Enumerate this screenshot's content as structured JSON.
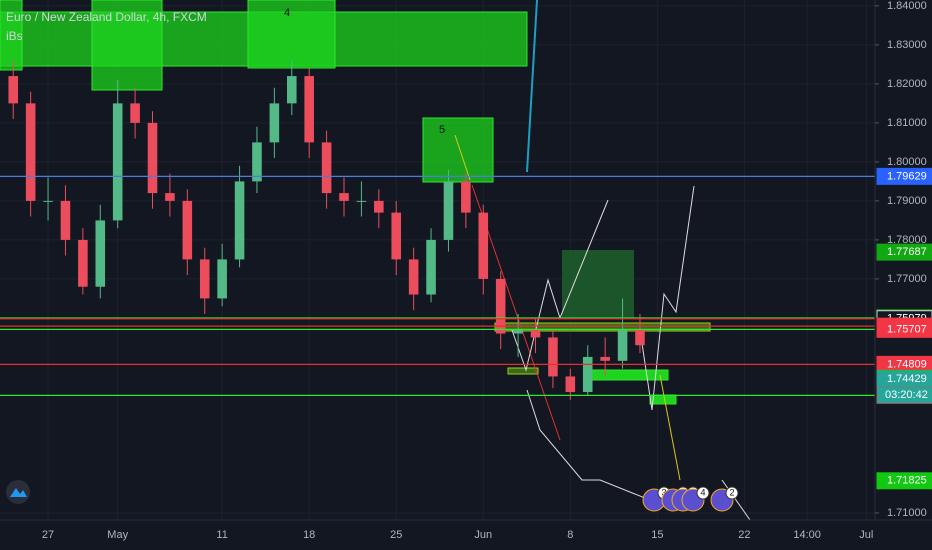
{
  "chart_data": {
    "type": "candlestick",
    "title": "Euro / New Zealand Dollar, 4h, FXCM",
    "subtitle": "iBs",
    "x": [
      -2,
      -1,
      0,
      1,
      2,
      3,
      4,
      5,
      6,
      7,
      8,
      9,
      10,
      11,
      12,
      13,
      14,
      15,
      16,
      17,
      18,
      19,
      20,
      21,
      22,
      23,
      24,
      25,
      26,
      27,
      28,
      29,
      30,
      31,
      32,
      33,
      34
    ],
    "open": [
      1.822,
      1.815,
      1.79,
      1.79,
      1.78,
      1.768,
      1.785,
      1.815,
      1.81,
      1.792,
      1.79,
      1.775,
      1.765,
      1.775,
      1.795,
      1.805,
      1.815,
      1.822,
      1.805,
      1.792,
      1.79,
      1.79,
      1.787,
      1.775,
      1.766,
      1.78,
      1.795,
      1.787,
      1.77,
      1.756,
      1.757,
      1.755,
      1.745,
      1.741,
      1.75,
      1.749,
      1.757
    ],
    "high": [
      1.826,
      1.818,
      1.796,
      1.794,
      1.783,
      1.789,
      1.821,
      1.819,
      1.813,
      1.797,
      1.793,
      1.778,
      1.779,
      1.799,
      1.809,
      1.819,
      1.826,
      1.824,
      1.808,
      1.796,
      1.795,
      1.793,
      1.79,
      1.778,
      1.783,
      1.798,
      1.797,
      1.789,
      1.772,
      1.761,
      1.76,
      1.757,
      1.747,
      1.753,
      1.755,
      1.765,
      1.761
    ],
    "low": [
      1.811,
      1.786,
      1.785,
      1.776,
      1.766,
      1.765,
      1.783,
      1.806,
      1.788,
      1.786,
      1.771,
      1.761,
      1.763,
      1.773,
      1.792,
      1.801,
      1.812,
      1.801,
      1.788,
      1.786,
      1.786,
      1.783,
      1.771,
      1.762,
      1.764,
      1.777,
      1.783,
      1.766,
      1.752,
      1.75,
      1.751,
      1.742,
      1.739,
      1.74,
      1.745,
      1.747,
      1.751
    ],
    "close": [
      1.815,
      1.79,
      1.79,
      1.78,
      1.768,
      1.785,
      1.815,
      1.81,
      1.792,
      1.79,
      1.775,
      1.765,
      1.775,
      1.795,
      1.805,
      1.815,
      1.822,
      1.805,
      1.792,
      1.79,
      1.79,
      1.787,
      1.775,
      1.766,
      1.78,
      1.795,
      1.787,
      1.77,
      1.756,
      1.757,
      1.755,
      1.745,
      1.741,
      1.75,
      1.749,
      1.757,
      1.753
    ],
    "up_color": "#53b987",
    "down_color": "#eb4d5c",
    "xlim": [
      -2.76,
      47.5
    ],
    "xticks": [
      {
        "value": 0,
        "label": "27"
      },
      {
        "value": 4,
        "label": "May"
      },
      {
        "value": 10,
        "label": "11"
      },
      {
        "value": 15,
        "label": "18"
      },
      {
        "value": 20,
        "label": "25"
      },
      {
        "value": 25,
        "label": "Jun"
      },
      {
        "value": 30,
        "label": "8"
      },
      {
        "value": 35,
        "label": "15"
      },
      {
        "value": 40,
        "label": "22"
      },
      {
        "value": 43.6,
        "label": "14:00"
      },
      {
        "value": 47,
        "label": "Jul"
      }
    ],
    "ylim": [
      1.7082,
      1.8415
    ],
    "yticks": [
      {
        "value": 1.71,
        "label": "1.71000"
      },
      {
        "value": 1.77,
        "label": "1.77000"
      },
      {
        "value": 1.78,
        "label": "1.78000"
      },
      {
        "value": 1.79,
        "label": "1.79000"
      },
      {
        "value": 1.8,
        "label": "1.80000"
      },
      {
        "value": 1.81,
        "label": "1.81000"
      },
      {
        "value": 1.82,
        "label": "1.82000"
      },
      {
        "value": 1.83,
        "label": "1.83000"
      },
      {
        "value": 1.84,
        "label": "1.84000"
      }
    ],
    "grid": true,
    "levels": [
      {
        "value": 1.79629,
        "color": "#4a7ed8"
      },
      {
        "value": 1.76,
        "color": "#2ee82e"
      },
      {
        "value": 1.75979,
        "color": "#e03030"
      },
      {
        "value": 1.75789,
        "color": "#e03030"
      },
      {
        "value": 1.75707,
        "color": "#2ee82e"
      },
      {
        "value": 1.74809,
        "color": "#e03030"
      },
      {
        "value": 1.74015,
        "color": "#2ee82e"
      }
    ],
    "price_labels": [
      {
        "value": 1.79629,
        "color": "#2962ff"
      },
      {
        "value": 1.77687,
        "color": "#12a812"
      },
      {
        "value": 1.76,
        "label": "1.76000",
        "color": "#0ec30e"
      },
      {
        "value": 1.75979,
        "color": "#131722"
      },
      {
        "value": 1.75789,
        "color": "#f23645"
      },
      {
        "value": 1.75707,
        "color": "#f23645"
      },
      {
        "value": 1.74809,
        "color": "#f23645"
      },
      {
        "value": 1.74452,
        "color": "#12c812"
      },
      {
        "value": 1.74429,
        "color": "#26a69a"
      },
      {
        "value": 1.74015,
        "color": "#f23645"
      },
      {
        "value": 1.71825,
        "color": "#12c812"
      }
    ],
    "countdown": "03:20:42",
    "annotations": [
      "4",
      "5"
    ],
    "events": [
      "3",
      "3",
      "2",
      "4",
      "2"
    ]
  }
}
